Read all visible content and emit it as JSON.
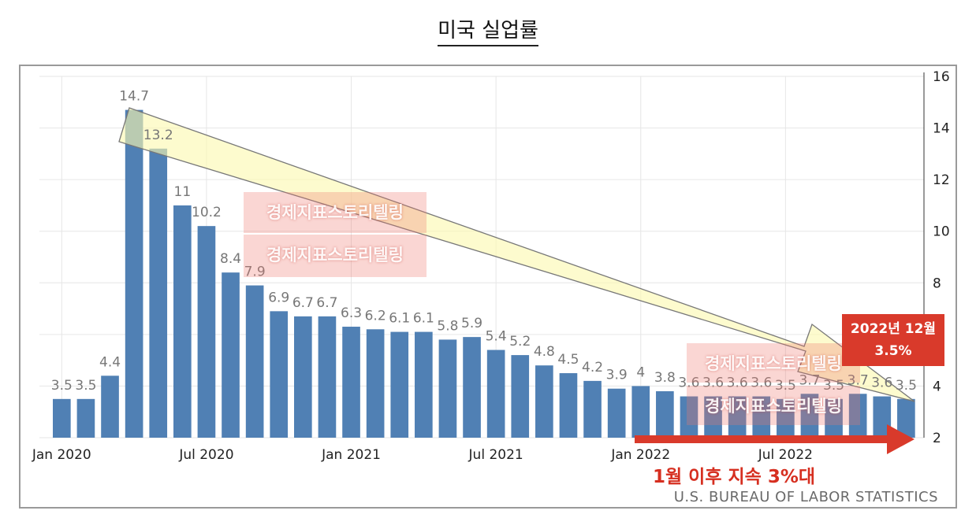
{
  "page_title": "미국 실업률",
  "chart_data": {
    "type": "bar",
    "title": "미국 실업률",
    "categories": [
      "2020-01",
      "2020-02",
      "2020-03",
      "2020-04",
      "2020-05",
      "2020-06",
      "2020-07",
      "2020-08",
      "2020-09",
      "2020-10",
      "2020-11",
      "2020-12",
      "2021-01",
      "2021-02",
      "2021-03",
      "2021-04",
      "2021-05",
      "2021-06",
      "2021-07",
      "2021-08",
      "2021-09",
      "2021-10",
      "2021-11",
      "2021-12",
      "2022-01",
      "2022-02",
      "2022-03",
      "2022-04",
      "2022-05",
      "2022-06",
      "2022-07",
      "2022-08",
      "2022-09",
      "2022-10",
      "2022-11",
      "2022-12"
    ],
    "values": [
      3.5,
      3.5,
      4.4,
      14.7,
      13.2,
      11,
      10.2,
      8.4,
      7.9,
      6.9,
      6.7,
      6.7,
      6.3,
      6.2,
      6.1,
      6.1,
      5.8,
      5.9,
      5.4,
      5.2,
      4.8,
      4.5,
      4.2,
      3.9,
      4,
      3.8,
      3.6,
      3.6,
      3.6,
      3.6,
      3.5,
      3.7,
      3.5,
      3.7,
      3.6,
      3.5
    ],
    "labels": [
      "3.5",
      "3.5",
      "4.4",
      "14.7",
      "13.2",
      "11",
      "10.2",
      "8.4",
      "7.9",
      "6.9",
      "6.7",
      "6.7",
      "6.3",
      "6.2",
      "6.1",
      "6.1",
      "5.8",
      "5.9",
      "5.4",
      "5.2",
      "4.8",
      "4.5",
      "4.2",
      "3.9",
      "4",
      "3.8",
      "3.6",
      "3.6",
      "3.6",
      "3.6",
      "3.5",
      "3.7",
      "3.5",
      "3.7",
      "3.6",
      "3.5"
    ],
    "x_ticks": [
      {
        "index": 0,
        "label": "Jan 2020"
      },
      {
        "index": 6,
        "label": "Jul 2020"
      },
      {
        "index": 12,
        "label": "Jan 2021"
      },
      {
        "index": 18,
        "label": "Jul 2021"
      },
      {
        "index": 24,
        "label": "Jan 2022"
      },
      {
        "index": 30,
        "label": "Jul 2022"
      }
    ],
    "y_ticks": [
      2,
      4,
      6,
      8,
      10,
      12,
      14,
      16
    ],
    "ylim": [
      2,
      16
    ],
    "ylabel": "",
    "xlabel": "",
    "grid": true,
    "bar_color": "#5080b4",
    "source": "U.S. BUREAU OF LABOR STATISTICS"
  },
  "annotations": {
    "callout_line1": "2022년 12월",
    "callout_line2": "3.5%",
    "bottom_note": "1월 이후 지속 3%대",
    "watermark": "경제지표스토리텔링",
    "accent_color": "#d93a2b",
    "arrow_fill": "#fbf8b0"
  }
}
